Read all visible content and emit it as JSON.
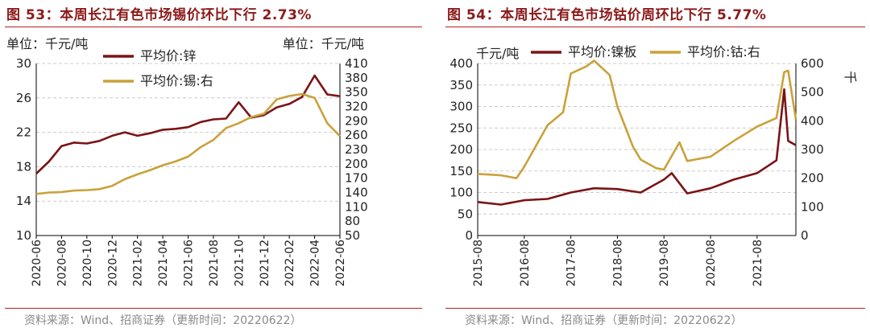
{
  "colors": {
    "zinc": "#7b1416",
    "tin": "#c9a23a",
    "cobalt": "#c9a23a",
    "nickel": "#7b1416",
    "title": "#8b1a1a",
    "grid": "#cccccc",
    "source": "#8a8a8a"
  },
  "source_text": "资料来源：Wind、招商证券（更新时间：20220622）",
  "chart_data": [
    {
      "type": "line",
      "title": "图 53：本周长江有色市场锡价环比下行 2.73%",
      "left_unit": "单位：千元/吨",
      "right_unit": "单位：千元/吨",
      "ylim_left": [
        10,
        30
      ],
      "yticks_left": [
        "10",
        "14",
        "18",
        "22",
        "26",
        "30"
      ],
      "ylim_right": [
        50,
        410
      ],
      "yticks_right": [
        "50",
        "80",
        "110",
        "140",
        "170",
        "200",
        "230",
        "260",
        "290",
        "320",
        "350",
        "380",
        "410"
      ],
      "x_range": [
        "2020-06",
        "2022-06"
      ],
      "xticks": [
        "2020-06",
        "2020-08",
        "2020-10",
        "2020-12",
        "2021-02",
        "2021-04",
        "2021-06",
        "2021-08",
        "2021-10",
        "2021-12",
        "2022-02",
        "2022-04",
        "2022-06"
      ],
      "grid": true,
      "series": [
        {
          "name": "平均价:锌",
          "axis": "left",
          "key": "zinc",
          "x": [
            "2020-06",
            "2020-07",
            "2020-08",
            "2020-09",
            "2020-10",
            "2020-11",
            "2020-12",
            "2021-01",
            "2021-02",
            "2021-03",
            "2021-04",
            "2021-05",
            "2021-06",
            "2021-07",
            "2021-08",
            "2021-09",
            "2021-10",
            "2021-11",
            "2021-12",
            "2022-01",
            "2022-02",
            "2022-03",
            "2022-04",
            "2022-05",
            "2022-06"
          ],
          "y": [
            17.2,
            18.6,
            20.4,
            20.8,
            20.7,
            21.0,
            21.6,
            22.0,
            21.6,
            21.9,
            22.3,
            22.4,
            22.6,
            23.2,
            23.5,
            23.6,
            25.5,
            23.7,
            24.0,
            24.9,
            25.3,
            26.1,
            28.6,
            26.4,
            26.2
          ]
        },
        {
          "name": "平均价:锡:右",
          "axis": "right",
          "key": "tin",
          "x": [
            "2020-06",
            "2020-07",
            "2020-08",
            "2020-09",
            "2020-10",
            "2020-11",
            "2020-12",
            "2021-01",
            "2021-02",
            "2021-03",
            "2021-04",
            "2021-05",
            "2021-06",
            "2021-07",
            "2021-08",
            "2021-09",
            "2021-10",
            "2021-11",
            "2021-12",
            "2022-01",
            "2022-02",
            "2022-03",
            "2022-04",
            "2022-05",
            "2022-06"
          ],
          "y": [
            137,
            140,
            141,
            144,
            145,
            147,
            154,
            168,
            178,
            187,
            197,
            205,
            215,
            235,
            250,
            275,
            285,
            298,
            305,
            335,
            342,
            346,
            338,
            285,
            258
          ]
        }
      ]
    },
    {
      "type": "line",
      "title": "图 54：本周长江有色市场钴价周环比下行 5.77%",
      "left_unit": "千元/吨",
      "right_unit": "千",
      "ylim_left": [
        0,
        400
      ],
      "yticks_left": [
        "0",
        "50",
        "100",
        "150",
        "200",
        "250",
        "300",
        "350",
        "400"
      ],
      "ylim_right": [
        0,
        600
      ],
      "yticks_right": [
        "0",
        "100",
        "200",
        "300",
        "400",
        "500",
        "600"
      ],
      "x_range": [
        "2015-08",
        "2022-06"
      ],
      "xticks": [
        "2015-08",
        "2016-08",
        "2017-08",
        "2018-08",
        "2019-08",
        "2020-08",
        "2021-08"
      ],
      "grid": true,
      "series": [
        {
          "name": "平均价:镍板",
          "axis": "left",
          "key": "nickel",
          "x": [
            "2015-08",
            "2016-02",
            "2016-08",
            "2017-02",
            "2017-08",
            "2018-02",
            "2018-08",
            "2019-02",
            "2019-08",
            "2019-10",
            "2020-02",
            "2020-08",
            "2021-02",
            "2021-08",
            "2022-01",
            "2022-03",
            "2022-04",
            "2022-06"
          ],
          "y": [
            78,
            72,
            82,
            85,
            100,
            110,
            108,
            100,
            130,
            145,
            98,
            110,
            130,
            145,
            175,
            340,
            220,
            210
          ]
        },
        {
          "name": "平均价:钴:右",
          "axis": "right",
          "key": "cobalt",
          "x": [
            "2015-08",
            "2016-02",
            "2016-06",
            "2016-08",
            "2017-02",
            "2017-06",
            "2017-08",
            "2017-12",
            "2018-02",
            "2018-06",
            "2018-08",
            "2018-12",
            "2019-02",
            "2019-06",
            "2019-08",
            "2019-12",
            "2020-02",
            "2020-08",
            "2021-02",
            "2021-08",
            "2022-01",
            "2022-03",
            "2022-04",
            "2022-06"
          ],
          "y": [
            215,
            210,
            200,
            240,
            385,
            430,
            565,
            590,
            610,
            560,
            450,
            310,
            265,
            235,
            230,
            325,
            260,
            275,
            330,
            380,
            410,
            570,
            575,
            405
          ]
        }
      ]
    }
  ]
}
